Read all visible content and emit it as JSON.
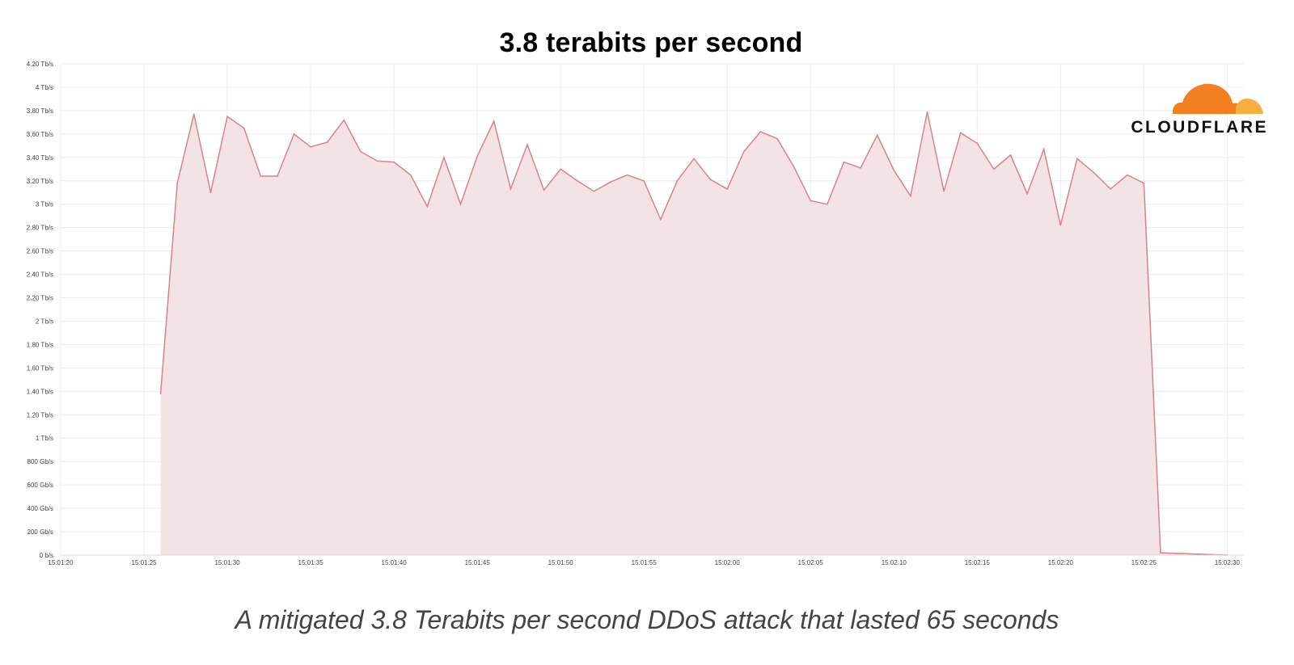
{
  "chart_data": {
    "type": "area",
    "title": "3.8 terabits per second",
    "caption": "A mitigated 3.8 Terabits per second DDoS attack that lasted 65 seconds",
    "brand": "CLOUDFLARE",
    "xlabel": "",
    "ylabel": "",
    "ylim": [
      0,
      4.2
    ],
    "y_unit": "Tb/s",
    "yticks": [
      {
        "value": 0,
        "label": "0 b/s"
      },
      {
        "value": 0.2,
        "label": "200 Gb/s"
      },
      {
        "value": 0.4,
        "label": "400 Gb/s"
      },
      {
        "value": 0.6,
        "label": "600 Gb/s"
      },
      {
        "value": 0.8,
        "label": "800 Gb/s"
      },
      {
        "value": 1.0,
        "label": "1 Tb/s"
      },
      {
        "value": 1.2,
        "label": "1.20 Tb/s"
      },
      {
        "value": 1.4,
        "label": "1.40 Tb/s"
      },
      {
        "value": 1.6,
        "label": "1.60 Tb/s"
      },
      {
        "value": 1.8,
        "label": "1.80 Tb/s"
      },
      {
        "value": 2.0,
        "label": "2 Tb/s"
      },
      {
        "value": 2.2,
        "label": "2.20 Tb/s"
      },
      {
        "value": 2.4,
        "label": "2.40 Tb/s"
      },
      {
        "value": 2.6,
        "label": "2.60 Tb/s"
      },
      {
        "value": 2.8,
        "label": "2.80 Tb/s"
      },
      {
        "value": 3.0,
        "label": "3 Tb/s"
      },
      {
        "value": 3.2,
        "label": "3.20 Tb/s"
      },
      {
        "value": 3.4,
        "label": "3.40 Tb/s"
      },
      {
        "value": 3.6,
        "label": "3.60 Tb/s"
      },
      {
        "value": 3.8,
        "label": "3.80 Tb/s"
      },
      {
        "value": 4.0,
        "label": "4 Tb/s"
      },
      {
        "value": 4.2,
        "label": "4.20 Tb/s"
      }
    ],
    "xticks": [
      "15:01:20",
      "15:01:25",
      "15:01:30",
      "15:01:35",
      "15:01:40",
      "15:01:45",
      "15:01:50",
      "15:01:55",
      "15:02:00",
      "15:02:05",
      "15:02:10",
      "15:02:15",
      "15:02:20",
      "15:02:25",
      "15:02:30"
    ],
    "xlim": [
      "15:01:20",
      "15:02:31"
    ],
    "grid": true,
    "series_color": "#d4848c",
    "fill_color": "#f3e3e4",
    "brand_colors": {
      "cloud_dark": "#f38020",
      "cloud_light": "#faae40"
    },
    "x": [
      "15:01:26",
      "15:01:27",
      "15:01:28",
      "15:01:29",
      "15:01:30",
      "15:01:31",
      "15:01:32",
      "15:01:33",
      "15:01:34",
      "15:01:35",
      "15:01:36",
      "15:01:37",
      "15:01:38",
      "15:01:39",
      "15:01:40",
      "15:01:41",
      "15:01:42",
      "15:01:43",
      "15:01:44",
      "15:01:45",
      "15:01:46",
      "15:01:47",
      "15:01:48",
      "15:01:49",
      "15:01:50",
      "15:01:51",
      "15:01:52",
      "15:01:53",
      "15:01:54",
      "15:01:55",
      "15:01:56",
      "15:01:57",
      "15:01:58",
      "15:01:59",
      "15:02:00",
      "15:02:01",
      "15:02:02",
      "15:02:03",
      "15:02:04",
      "15:02:05",
      "15:02:06",
      "15:02:07",
      "15:02:08",
      "15:02:09",
      "15:02:10",
      "15:02:11",
      "15:02:12",
      "15:02:13",
      "15:02:14",
      "15:02:15",
      "15:02:16",
      "15:02:17",
      "15:02:18",
      "15:02:19",
      "15:02:20",
      "15:02:21",
      "15:02:22",
      "15:02:23",
      "15:02:24",
      "15:02:25",
      "15:02:26",
      "15:02:30"
    ],
    "values": [
      1.38,
      3.18,
      3.77,
      3.1,
      3.75,
      3.65,
      3.24,
      3.24,
      3.6,
      3.49,
      3.53,
      3.72,
      3.45,
      3.37,
      3.36,
      3.25,
      2.98,
      3.4,
      3.0,
      3.41,
      3.71,
      3.13,
      3.51,
      3.12,
      3.3,
      3.2,
      3.11,
      3.19,
      3.25,
      3.2,
      2.87,
      3.2,
      3.39,
      3.21,
      3.13,
      3.45,
      3.62,
      3.56,
      3.32,
      3.03,
      3.0,
      3.36,
      3.31,
      3.59,
      3.29,
      3.07,
      3.79,
      3.11,
      3.61,
      3.52,
      3.3,
      3.42,
      3.09,
      3.47,
      2.82,
      3.39,
      3.27,
      3.13,
      3.25,
      3.18,
      0.02,
      0.0
    ]
  }
}
